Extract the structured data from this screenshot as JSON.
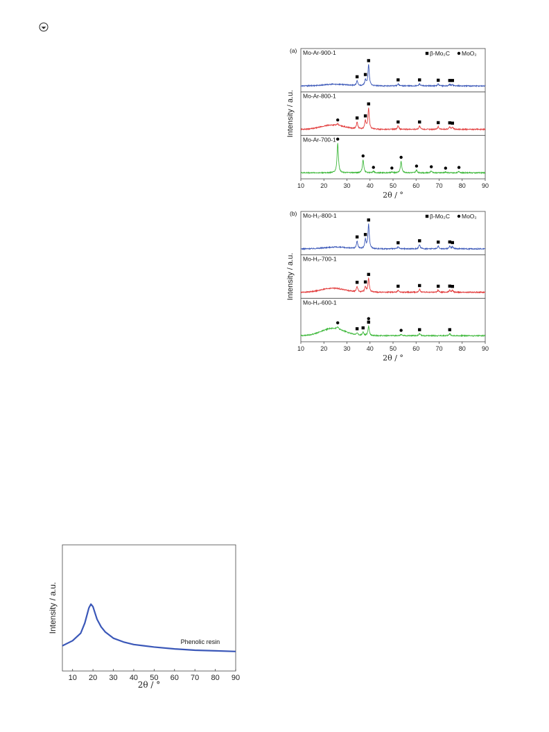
{
  "logo_icon": "circle-arrow-icon",
  "chart_data": [
    {
      "id": "a",
      "type": "line",
      "panel_label": "(a)",
      "xlabel": "2θ / °",
      "ylabel": "Intensity / a.u.",
      "xlim": [
        10,
        90
      ],
      "xticks": [
        10,
        20,
        30,
        40,
        50,
        60,
        70,
        80,
        90
      ],
      "legend": {
        "placement": "top-right",
        "entries": [
          {
            "marker": "square",
            "label": "β-Mo₂C"
          },
          {
            "marker": "circle",
            "label": "MoO₂"
          }
        ]
      },
      "series": [
        {
          "name": "Mo-Ar-900-1",
          "color": "#3a57b8",
          "hump": {
            "center": 25,
            "width": 7,
            "height": 0.05
          },
          "peaks": [
            {
              "x": 34.4,
              "h": 0.14,
              "marker": "square"
            },
            {
              "x": 38.0,
              "h": 0.18,
              "marker": "square"
            },
            {
              "x": 39.4,
              "h": 0.62,
              "marker": "square"
            },
            {
              "x": 52.2,
              "h": 0.06,
              "marker": "square"
            },
            {
              "x": 61.5,
              "h": 0.06,
              "marker": "square"
            },
            {
              "x": 69.6,
              "h": 0.05,
              "marker": "square"
            },
            {
              "x": 74.6,
              "h": 0.04,
              "marker": "square"
            },
            {
              "x": 75.8,
              "h": 0.04,
              "marker": "square"
            }
          ]
        },
        {
          "name": "Mo-Ar-800-1",
          "color": "#e23a3a",
          "hump": {
            "center": 24,
            "width": 7,
            "height": 0.13
          },
          "peaks": [
            {
              "x": 26.0,
              "h": 0.04,
              "marker": "circle"
            },
            {
              "x": 34.4,
              "h": 0.2,
              "marker": "square"
            },
            {
              "x": 38.0,
              "h": 0.24,
              "marker": "square"
            },
            {
              "x": 39.4,
              "h": 0.62,
              "marker": "square"
            },
            {
              "x": 52.2,
              "h": 0.1,
              "marker": "square"
            },
            {
              "x": 61.5,
              "h": 0.1,
              "marker": "square"
            },
            {
              "x": 69.6,
              "h": 0.08,
              "marker": "square"
            },
            {
              "x": 74.6,
              "h": 0.07,
              "marker": "square"
            },
            {
              "x": 75.8,
              "h": 0.06,
              "marker": "square"
            }
          ]
        },
        {
          "name": "Mo-Ar-700-1",
          "color": "#3db83a",
          "hump": {
            "center": 24,
            "width": 7,
            "height": 0.0
          },
          "peaks": [
            {
              "x": 26.0,
              "h": 0.88,
              "marker": "circle"
            },
            {
              "x": 37.0,
              "h": 0.38,
              "marker": "circle"
            },
            {
              "x": 41.5,
              "h": 0.04,
              "marker": "circle"
            },
            {
              "x": 49.5,
              "h": 0.02,
              "marker": "circle"
            },
            {
              "x": 53.5,
              "h": 0.34,
              "marker": "circle"
            },
            {
              "x": 60.2,
              "h": 0.08,
              "marker": "circle"
            },
            {
              "x": 66.6,
              "h": 0.06,
              "marker": "circle"
            },
            {
              "x": 72.8,
              "h": 0.02,
              "marker": "circle"
            },
            {
              "x": 78.6,
              "h": 0.04,
              "marker": "circle"
            }
          ]
        }
      ]
    },
    {
      "id": "b",
      "type": "line",
      "panel_label": "(b)",
      "xlabel": "2θ / °",
      "ylabel": "Intensity / a.u.",
      "xlim": [
        10,
        90
      ],
      "xticks": [
        10,
        20,
        30,
        40,
        50,
        60,
        70,
        80,
        90
      ],
      "legend": {
        "placement": "top-right",
        "entries": [
          {
            "marker": "square",
            "label": "β-Mo₂C"
          },
          {
            "marker": "circle",
            "label": "MoO₂"
          }
        ]
      },
      "series": [
        {
          "name": "Mo-H₂-800-1",
          "color": "#3a57b8",
          "hump": {
            "center": 25,
            "width": 7,
            "height": 0.05
          },
          "peaks": [
            {
              "x": 34.4,
              "h": 0.22,
              "marker": "square"
            },
            {
              "x": 38.0,
              "h": 0.26,
              "marker": "square"
            },
            {
              "x": 39.4,
              "h": 0.72,
              "marker": "square"
            },
            {
              "x": 52.2,
              "h": 0.06,
              "marker": "square"
            },
            {
              "x": 61.5,
              "h": 0.12,
              "marker": "square"
            },
            {
              "x": 69.6,
              "h": 0.08,
              "marker": "square"
            },
            {
              "x": 74.6,
              "h": 0.08,
              "marker": "square"
            },
            {
              "x": 75.8,
              "h": 0.06,
              "marker": "square"
            }
          ]
        },
        {
          "name": "Mo-H₂-700-1",
          "color": "#e23a3a",
          "hump": {
            "center": 24,
            "width": 7,
            "height": 0.12
          },
          "peaks": [
            {
              "x": 34.4,
              "h": 0.16,
              "marker": "square"
            },
            {
              "x": 38.0,
              "h": 0.16,
              "marker": "square"
            },
            {
              "x": 39.4,
              "h": 0.4,
              "marker": "square"
            },
            {
              "x": 52.2,
              "h": 0.06,
              "marker": "square"
            },
            {
              "x": 61.5,
              "h": 0.08,
              "marker": "square"
            },
            {
              "x": 69.6,
              "h": 0.06,
              "marker": "square"
            },
            {
              "x": 74.6,
              "h": 0.06,
              "marker": "square"
            },
            {
              "x": 75.8,
              "h": 0.05,
              "marker": "square"
            }
          ]
        },
        {
          "name": "Mo-H₂-600-1",
          "color": "#3db83a",
          "hump": {
            "center": 24,
            "width": 7,
            "height": 0.22
          },
          "peaks": [
            {
              "x": 26.0,
              "h": 0.06,
              "marker": "circle"
            },
            {
              "x": 34.4,
              "h": 0.06,
              "marker": "square"
            },
            {
              "x": 37.0,
              "h": 0.1,
              "marker": "square"
            },
            {
              "x": 39.4,
              "h": 0.28,
              "marker": "square",
              "marker2": "circle"
            },
            {
              "x": 53.5,
              "h": 0.04,
              "marker": "circle"
            },
            {
              "x": 61.5,
              "h": 0.06,
              "marker": "square"
            },
            {
              "x": 74.6,
              "h": 0.06,
              "marker": "square"
            }
          ]
        }
      ]
    },
    {
      "id": "c",
      "type": "line",
      "xlabel": "2θ / °",
      "ylabel": "Intensity / a.u.",
      "xlim": [
        5,
        90
      ],
      "xticks": [
        10,
        20,
        30,
        40,
        50,
        60,
        70,
        80,
        90
      ],
      "series": [
        {
          "name": "Phenolic resin",
          "color": "#3a57b8",
          "x": [
            5,
            10,
            14,
            16,
            17,
            18,
            19,
            20,
            21,
            22,
            24,
            26,
            30,
            35,
            40,
            45,
            50,
            60,
            70,
            80,
            90
          ],
          "y": [
            0.2,
            0.24,
            0.3,
            0.38,
            0.44,
            0.5,
            0.53,
            0.51,
            0.46,
            0.41,
            0.35,
            0.31,
            0.26,
            0.23,
            0.21,
            0.2,
            0.19,
            0.175,
            0.165,
            0.16,
            0.155
          ]
        }
      ]
    }
  ]
}
